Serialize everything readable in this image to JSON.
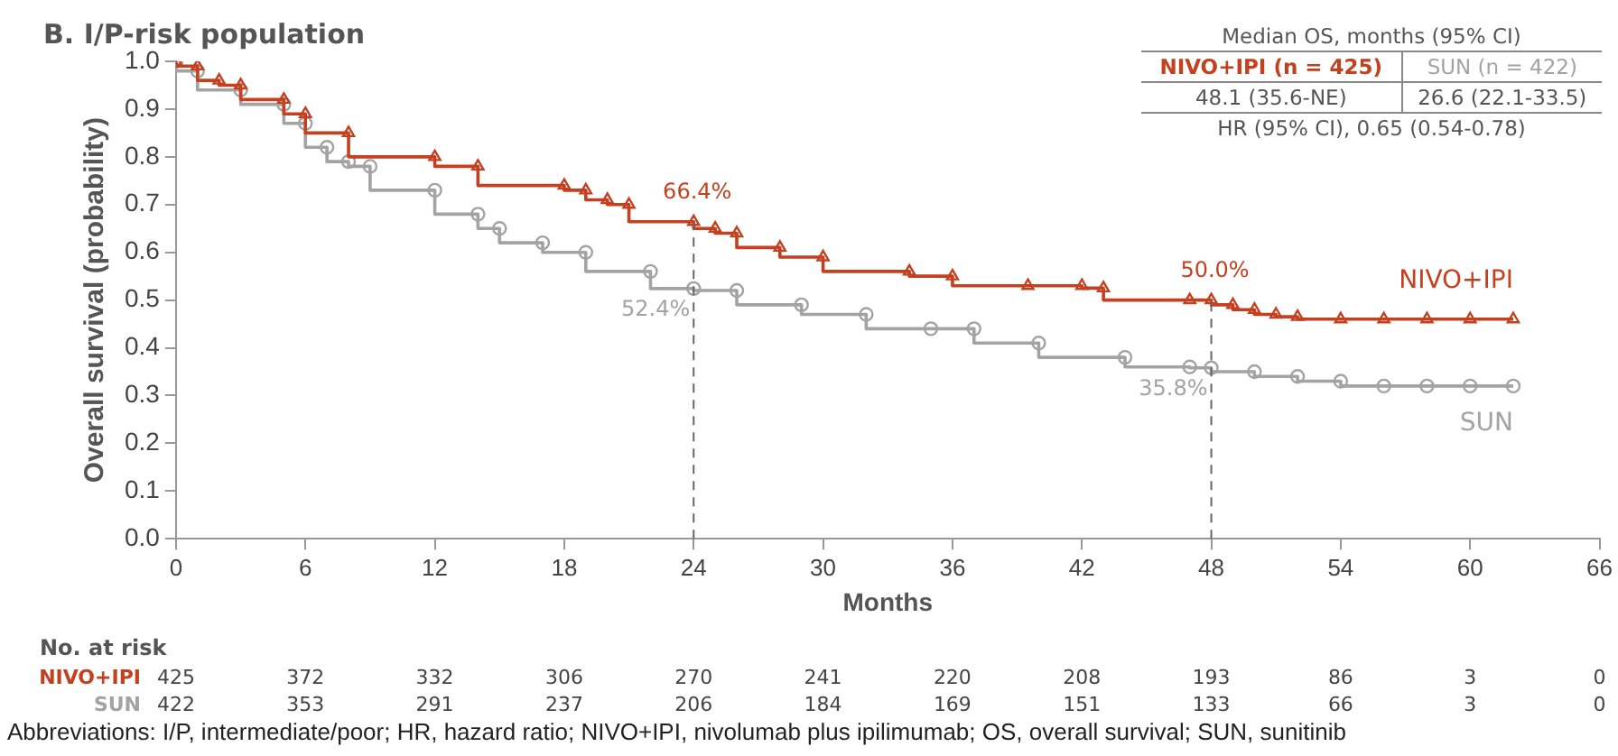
{
  "chart_data": {
    "type": "step",
    "title": "B. I/P-risk population",
    "xlabel": "Months",
    "ylabel": "Overall survival (probability)",
    "xlim": [
      0,
      66
    ],
    "xticks": [
      0,
      6,
      12,
      18,
      24,
      30,
      36,
      42,
      48,
      54,
      60,
      66
    ],
    "ylim": [
      0,
      1
    ],
    "yticks": [
      {
        "value": 0,
        "label": "0.0"
      },
      0.1,
      0.2,
      0.3,
      0.4,
      0.5,
      0.6,
      0.7,
      0.8,
      0.9,
      {
        "value": 1,
        "label": "1.0"
      }
    ],
    "grid": false,
    "legend": "right",
    "line_style": "solid",
    "series": [
      {
        "name": "NIVO+IPI",
        "color": "#c4401f",
        "marker": "triangle",
        "x": [
          0,
          1,
          2,
          3,
          5,
          6,
          8,
          12,
          14,
          18,
          19,
          20,
          21,
          24,
          25,
          26,
          28,
          30,
          34,
          36,
          39.5,
          42,
          43,
          47,
          48,
          49,
          50,
          51,
          52,
          54,
          56,
          58,
          60,
          62
        ],
        "values": [
          1.0,
          0.99,
          0.96,
          0.95,
          0.92,
          0.89,
          0.85,
          0.8,
          0.78,
          0.74,
          0.73,
          0.71,
          0.7,
          0.664,
          0.65,
          0.64,
          0.61,
          0.59,
          0.56,
          0.55,
          0.53,
          0.53,
          0.525,
          0.5,
          0.5,
          0.49,
          0.48,
          0.47,
          0.465,
          0.46,
          0.46,
          0.46,
          0.46,
          0.46
        ],
        "value_labels": [
          null,
          null,
          null,
          null,
          null,
          null,
          null,
          null,
          null,
          null,
          null,
          null,
          null,
          "66.4%",
          null,
          null,
          null,
          null,
          null,
          null,
          null,
          null,
          null,
          null,
          "50.0%",
          null,
          null,
          null,
          null,
          null,
          null,
          null,
          null,
          null
        ]
      },
      {
        "name": "SUN",
        "color": "#a3a3a3",
        "marker": "circle",
        "x": [
          0,
          1,
          3,
          5,
          6,
          7,
          8,
          9,
          12,
          14,
          15,
          17,
          19,
          22,
          24,
          26,
          29,
          32,
          35,
          37,
          40,
          44,
          47,
          48,
          50,
          52,
          54,
          56,
          58,
          60,
          62
        ],
        "values": [
          1.0,
          0.98,
          0.94,
          0.91,
          0.87,
          0.82,
          0.79,
          0.78,
          0.73,
          0.68,
          0.65,
          0.62,
          0.6,
          0.56,
          0.524,
          0.52,
          0.49,
          0.47,
          0.44,
          0.44,
          0.41,
          0.38,
          0.36,
          0.358,
          0.35,
          0.34,
          0.33,
          0.32,
          0.32,
          0.32,
          0.32
        ],
        "value_labels": [
          null,
          null,
          null,
          null,
          null,
          null,
          null,
          null,
          null,
          null,
          null,
          null,
          null,
          null,
          "52.4%",
          null,
          null,
          null,
          null,
          null,
          null,
          null,
          null,
          "35.8%",
          null,
          null,
          null,
          null,
          null,
          null,
          null
        ]
      }
    ],
    "ref_lines": [
      {
        "axis": "x",
        "value": 24,
        "line_style": "dashed",
        "color": "#666666"
      },
      {
        "axis": "x",
        "value": 48,
        "line_style": "dashed",
        "color": "#666666"
      }
    ],
    "annotations": [
      "Median OS, months (95% CI)",
      "NIVO+IPI (n = 425)",
      "SUN (n = 422)",
      "48.1 (35.6-NE)",
      "26.6 (22.1-33.5)",
      "HR (95% CI), 0.65 (0.54-0.78)",
      "No. at risk",
      "NIVO+IPI",
      "425",
      "372",
      "332",
      "306",
      "270",
      "241",
      "220",
      "208",
      "193",
      "86",
      "3",
      "0",
      "SUN",
      "422",
      "353",
      "291",
      "237",
      "206",
      "184",
      "169",
      "151",
      "133",
      "66",
      "3",
      "0",
      "Abbreviations: I/P, intermediate/poor; HR, hazard ratio; NIVO+IPI, nivolumab plus ipilimumab; OS, overall survival; SUN, sunitinib"
    ]
  }
}
